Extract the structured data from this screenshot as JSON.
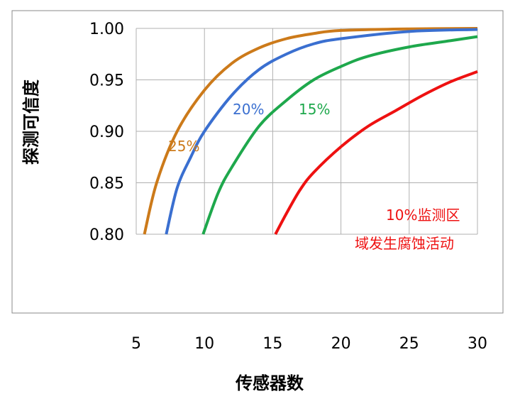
{
  "chart_data": {
    "type": "line",
    "title": "",
    "xlabel": "传感器数",
    "ylabel": "探测可信度",
    "xlim": [
      5,
      30
    ],
    "ylim": [
      0.8,
      1.0
    ],
    "x_ticks": [
      "5",
      "10",
      "15",
      "20",
      "25",
      "30"
    ],
    "y_ticks": [
      "0.80",
      "0.85",
      "0.90",
      "0.95",
      "1.00"
    ],
    "grid": true,
    "series": [
      {
        "name": "25%",
        "color": "#cc7a1a",
        "x": [
          5.6,
          6.5,
          8,
          10,
          12,
          14,
          16,
          18,
          20,
          25,
          30
        ],
        "y": [
          0.8,
          0.85,
          0.9,
          0.94,
          0.966,
          0.981,
          0.99,
          0.995,
          0.998,
          0.9995,
          1.0
        ]
      },
      {
        "name": "20%",
        "color": "#3a6fd0",
        "x": [
          7.2,
          8,
          9,
          10,
          12,
          14,
          16,
          18,
          20,
          25,
          30
        ],
        "y": [
          0.8,
          0.845,
          0.875,
          0.9,
          0.935,
          0.96,
          0.975,
          0.985,
          0.99,
          0.997,
          0.999
        ]
      },
      {
        "name": "15%",
        "color": "#1ea84c",
        "x": [
          9.9,
          11,
          12,
          14,
          16,
          18,
          20,
          22,
          25,
          28,
          30
        ],
        "y": [
          0.8,
          0.84,
          0.865,
          0.905,
          0.93,
          0.95,
          0.963,
          0.973,
          0.982,
          0.988,
          0.992
        ]
      },
      {
        "name": "10%监测区域发生腐蚀活动",
        "color": "#ee1111",
        "x": [
          15.2,
          16,
          17,
          18,
          20,
          22,
          24,
          26,
          28,
          30
        ],
        "y": [
          0.8,
          0.82,
          0.843,
          0.86,
          0.885,
          0.905,
          0.92,
          0.935,
          0.948,
          0.958
        ]
      }
    ]
  },
  "labels": {
    "s25": "25%",
    "s20": "20%",
    "s15": "15%",
    "note_line1": "10%监测区",
    "note_line2": "域发生腐蚀活动"
  }
}
